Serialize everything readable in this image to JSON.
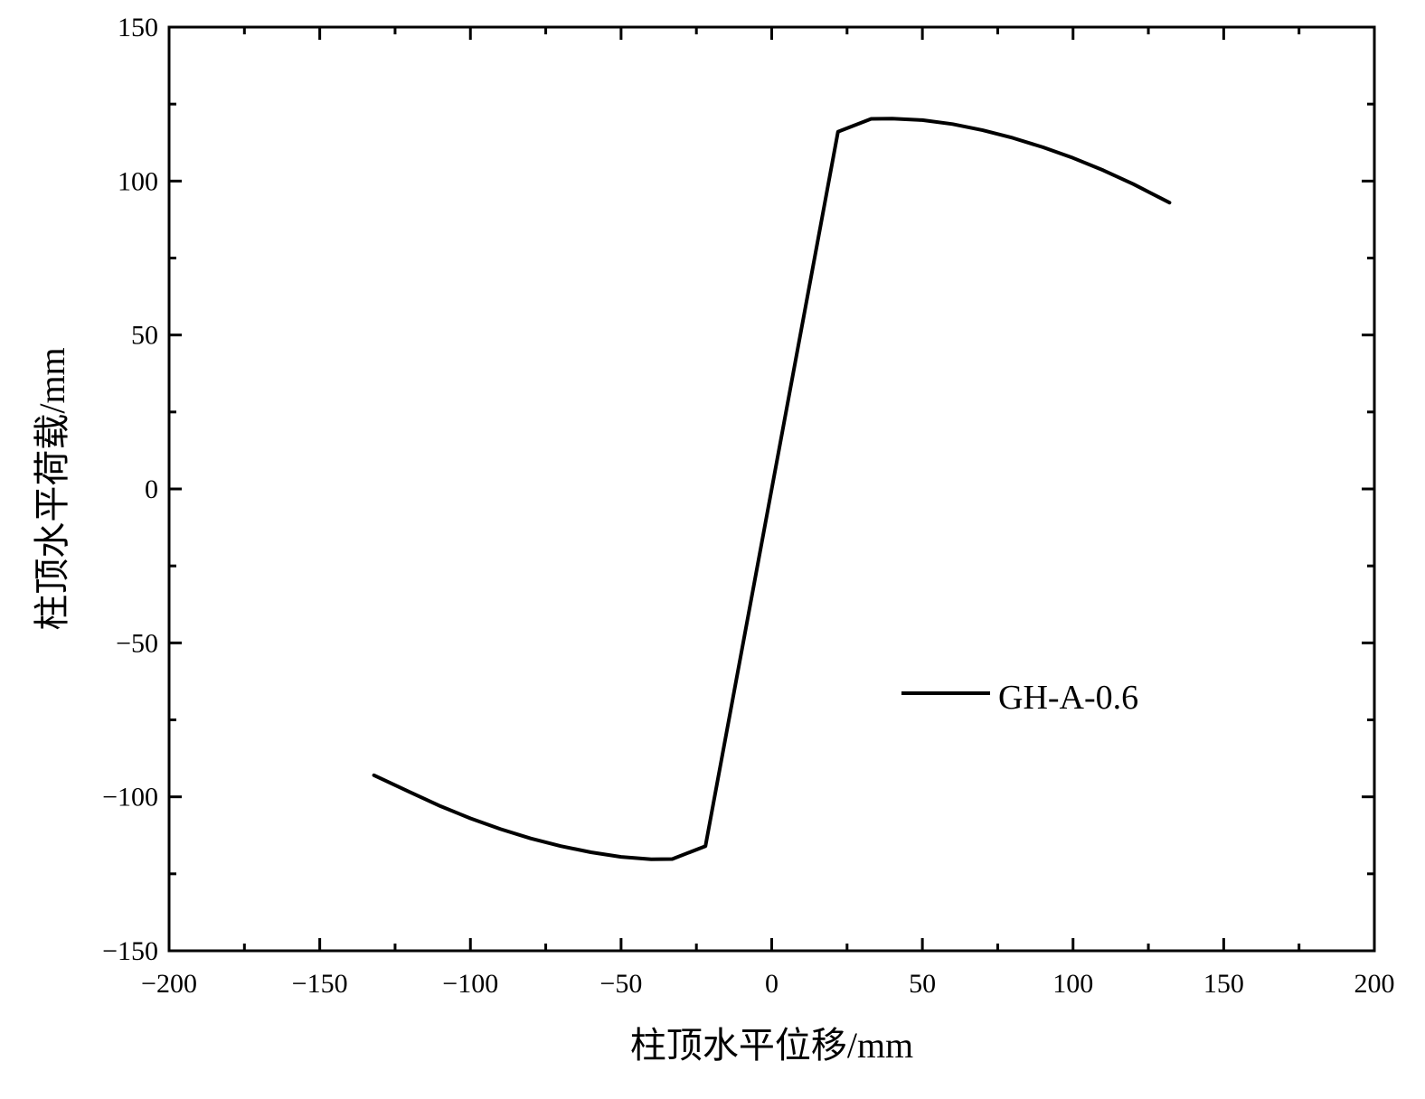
{
  "chart_data": {
    "type": "line",
    "title": "",
    "xlabel": "柱顶水平位移/mm",
    "ylabel": "柱顶水平荷载/mm",
    "xlim": [
      -200,
      200
    ],
    "ylim": [
      -150,
      150
    ],
    "xticks": [
      -200,
      -150,
      -100,
      -50,
      0,
      50,
      100,
      150,
      200
    ],
    "yticks": [
      -150,
      -100,
      -50,
      0,
      50,
      100,
      150
    ],
    "xtick_labels": [
      "−200",
      "−150",
      "−100",
      "−50",
      "0",
      "50",
      "100",
      "150",
      "200"
    ],
    "ytick_labels": [
      "−150",
      "−100",
      "−50",
      "0",
      "50",
      "100",
      "150"
    ],
    "grid": false,
    "legend_position": "right-middle",
    "series": [
      {
        "name": "GH-A-0.6",
        "color": "#000000",
        "x": [
          -132,
          -120,
          -110,
          -100,
          -90,
          -80,
          -70,
          -60,
          -50,
          -40,
          -33,
          -22,
          0,
          22,
          33,
          40,
          50,
          60,
          70,
          80,
          90,
          100,
          110,
          120,
          132
        ],
        "y": [
          -93,
          -98.5,
          -103,
          -107,
          -110.5,
          -113.5,
          -116,
          -118,
          -119.5,
          -120.3,
          -120.2,
          -116,
          0,
          116,
          120.2,
          120.3,
          119.8,
          118.5,
          116.5,
          114,
          111,
          107.5,
          103.5,
          99,
          93
        ]
      }
    ]
  }
}
